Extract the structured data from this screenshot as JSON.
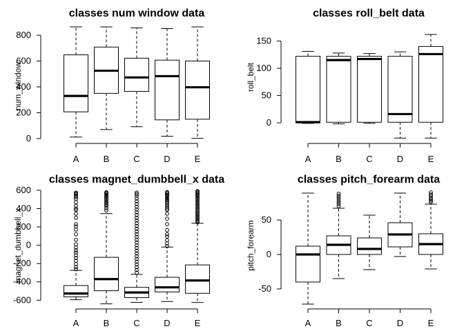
{
  "chart_data": [
    {
      "type": "boxplot",
      "title": "classes num window data",
      "ylabel": "num_window",
      "xlabel": "",
      "ylim": [
        0,
        864
      ],
      "yticks": [
        0,
        200,
        400,
        600,
        800
      ],
      "categories": [
        "A",
        "B",
        "C",
        "D",
        "E"
      ],
      "boxes": [
        {
          "category": "A",
          "min": 12,
          "q1": 207,
          "median": 330,
          "q3": 648,
          "max": 864,
          "outliers": []
        },
        {
          "category": "B",
          "min": 70,
          "q1": 350,
          "median": 525,
          "q3": 708,
          "max": 864,
          "outliers": []
        },
        {
          "category": "C",
          "min": 92,
          "q1": 365,
          "median": 473,
          "q3": 622,
          "max": 857,
          "outliers": []
        },
        {
          "category": "D",
          "min": 18,
          "q1": 145,
          "median": 483,
          "q3": 607,
          "max": 851,
          "outliers": []
        },
        {
          "category": "E",
          "min": 2,
          "q1": 150,
          "median": 397,
          "q3": 600,
          "max": 864,
          "outliers": []
        }
      ]
    },
    {
      "type": "boxplot",
      "title": "classes roll_belt data",
      "ylabel": "roll_belt",
      "xlabel": "",
      "ylim": [
        -29,
        162
      ],
      "yticks": [
        0,
        50,
        100,
        150
      ],
      "categories": [
        "A",
        "B",
        "C",
        "D",
        "E"
      ],
      "boxes": [
        {
          "category": "A",
          "min": -1,
          "q1": 0,
          "median": 1.2,
          "q3": 122,
          "max": 131,
          "outliers": []
        },
        {
          "category": "B",
          "min": -2,
          "q1": 1,
          "median": 115,
          "q3": 122,
          "max": 128,
          "outliers": []
        },
        {
          "category": "C",
          "min": -1,
          "q1": 1,
          "median": 117,
          "q3": 122,
          "max": 127,
          "outliers": []
        },
        {
          "category": "D",
          "min": -28,
          "q1": 1,
          "median": 16,
          "q3": 122,
          "max": 130,
          "outliers": []
        },
        {
          "category": "E",
          "min": -28,
          "q1": 1,
          "median": 126,
          "q3": 140,
          "max": 162,
          "outliers": []
        }
      ]
    },
    {
      "type": "boxplot",
      "title": "classes magnet_dumbbell_x data",
      "ylabel": "magnet_dumbbell_x",
      "xlabel": "",
      "ylim": [
        -643,
        592
      ],
      "yticks": [
        -600,
        -400,
        -200,
        0,
        200,
        400,
        600
      ],
      "categories": [
        "A",
        "B",
        "C",
        "D",
        "E"
      ],
      "boxes": [
        {
          "category": "A",
          "min": -595,
          "q1": -564,
          "median": -527,
          "q3": -440,
          "max": -275,
          "outliers": [
            -262,
            -238,
            -205,
            -170,
            -140,
            -110,
            -80,
            -55,
            -25,
            10,
            60,
            120,
            170,
            205,
            230,
            300,
            345,
            385,
            400,
            430,
            470,
            505,
            525,
            540,
            555,
            565,
            575
          ]
        },
        {
          "category": "B",
          "min": -640,
          "q1": -497,
          "median": -370,
          "q3": -132,
          "max": 345,
          "outliers": [
            380,
            405,
            430,
            445,
            460,
            475,
            490,
            505,
            520,
            535,
            548,
            560,
            570,
            578
          ]
        },
        {
          "category": "C",
          "min": -624,
          "q1": -572,
          "median": -516,
          "q3": -460,
          "max": -318,
          "outliers": [
            -300,
            -270,
            -240,
            -210,
            -180,
            -150,
            -120,
            -90,
            -60,
            -30,
            0,
            30,
            60,
            90,
            120,
            150,
            180,
            210,
            240,
            270,
            300,
            330,
            360,
            390,
            420,
            450,
            480,
            510,
            540,
            560,
            575
          ]
        },
        {
          "category": "D",
          "min": -615,
          "q1": -510,
          "median": -460,
          "q3": -350,
          "max": -20,
          "outliers": [
            -10,
            20,
            55,
            95,
            120,
            165,
            230,
            290,
            345,
            385,
            400,
            420,
            440,
            460,
            478,
            492,
            505,
            520,
            535,
            548,
            560,
            572,
            580
          ]
        },
        {
          "category": "E",
          "min": -625,
          "q1": -525,
          "median": -385,
          "q3": -215,
          "max": 240,
          "outliers": [
            250,
            265,
            280,
            295,
            310,
            325,
            340,
            355,
            370,
            385,
            400,
            415,
            430,
            445,
            460,
            475,
            490,
            505,
            520,
            535,
            548,
            560,
            572,
            582,
            592
          ]
        }
      ]
    },
    {
      "type": "boxplot",
      "title": "classes pitch_forearm data",
      "ylabel": "pitch_forearm",
      "xlabel": "",
      "ylim": [
        -72,
        90
      ],
      "yticks": [
        -50,
        0,
        50
      ],
      "categories": [
        "A",
        "B",
        "C",
        "D",
        "E"
      ],
      "boxes": [
        {
          "category": "A",
          "min": -72,
          "q1": -40,
          "median": 0,
          "q3": 12,
          "max": 89,
          "outliers": []
        },
        {
          "category": "B",
          "min": -35,
          "q1": 0,
          "median": 14,
          "q3": 27,
          "max": 67,
          "outliers": [
            70,
            73,
            76,
            79,
            82,
            85,
            88
          ]
        },
        {
          "category": "C",
          "min": -22,
          "q1": 0,
          "median": 8,
          "q3": 24,
          "max": 57,
          "outliers": []
        },
        {
          "category": "D",
          "min": -3,
          "q1": 11,
          "median": 29,
          "q3": 46,
          "max": 89,
          "outliers": []
        },
        {
          "category": "E",
          "min": -21,
          "q1": 0,
          "median": 15,
          "q3": 30,
          "max": 73,
          "outliers": [
            76,
            78,
            80,
            82,
            85,
            87,
            90
          ]
        }
      ]
    }
  ]
}
